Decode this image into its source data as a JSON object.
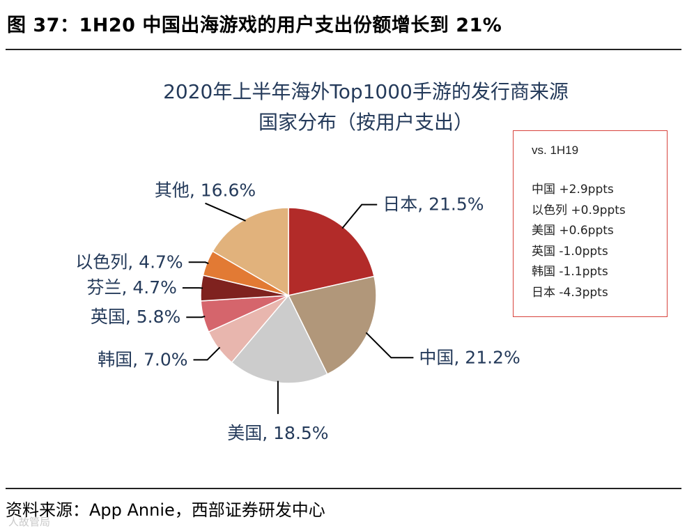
{
  "figure_title": "图 37：1H20 中国出海游戏的用户支出份额增长到 21%",
  "source": "资料来源：App Annie，西部证券研发中心",
  "watermark": "人故管局",
  "legend_box": {
    "heading": "vs. 1H19",
    "items": [
      "中国 +2.9ppts",
      "以色列 +0.9ppts",
      "美国 +0.6ppts",
      "英国 -1.0ppts",
      "韩国 -1.1ppts",
      "日本 -4.3ppts"
    ]
  },
  "chart_data": {
    "type": "pie",
    "title": "2020年上半年海外Top1000手游的发行商来源",
    "subtitle": "国家分布（按用户支出）",
    "slices": [
      {
        "name": "日本",
        "value": 21.5,
        "label": "日本, 21.5%",
        "color": "#b22b29"
      },
      {
        "name": "中国",
        "value": 21.2,
        "label": "中国, 21.2%",
        "color": "#b1977a"
      },
      {
        "name": "美国",
        "value": 18.5,
        "label": "美国, 18.5%",
        "color": "#cccccc"
      },
      {
        "name": "韩国",
        "value": 7.0,
        "label": "韩国, 7.0%",
        "color": "#e8b6ae"
      },
      {
        "name": "英国",
        "value": 5.8,
        "label": "英国, 5.8%",
        "color": "#d5656c"
      },
      {
        "name": "芬兰",
        "value": 4.7,
        "label": "芬兰, 4.7%",
        "color": "#7f221f"
      },
      {
        "name": "以色列",
        "value": 4.7,
        "label": "以色列, 4.7%",
        "color": "#e27a34"
      },
      {
        "name": "其他",
        "value": 16.6,
        "label": "其他, 16.6%",
        "color": "#e1b27c"
      }
    ]
  }
}
